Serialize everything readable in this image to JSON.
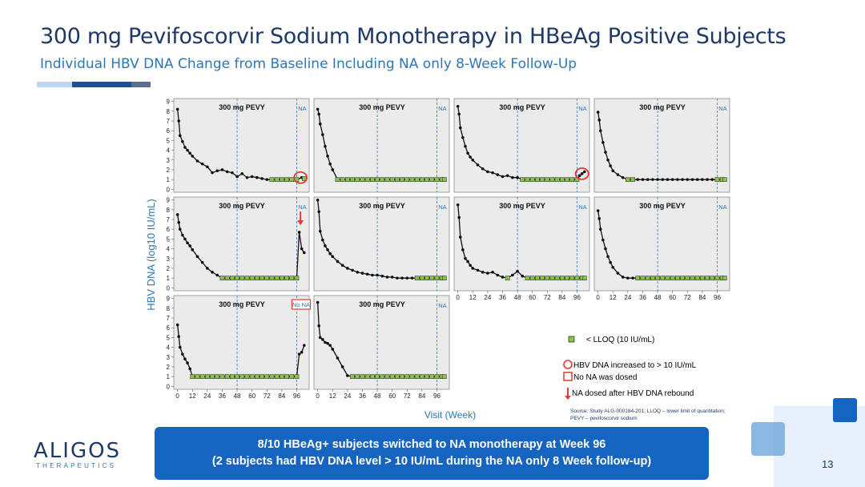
{
  "title": "300 mg Pevifoscorvir Sodium Monotherapy in HBeAg Positive Subjects",
  "subtitle": "Individual HBV DNA Change from Baseline Including NA only 8-Week Follow-Up",
  "logo": {
    "name": "ALIGOS",
    "tagline": "THERAPEUTICS"
  },
  "callout": {
    "line1": "8/10 HBeAg+ subjects switched to NA monotherapy at Week 96",
    "line2": "(2 subjects had HBV DNA level > 10 IU/mL during the NA only 8 Week follow-up)"
  },
  "page_number": "13",
  "colors": {
    "title": "#1f3864",
    "accent": "#2e75b6",
    "callout": "#1565c0",
    "lloq": "#8bc34a",
    "marker": "#e53935"
  },
  "chart_data": {
    "type": "line",
    "ylabel": "HBV DNA (log10 IU/mL)",
    "xlabel": "Visit (Week)",
    "x_ticks": [
      0,
      12,
      24,
      36,
      48,
      60,
      72,
      84,
      96
    ],
    "x_tick_labels": [
      "0",
      "12",
      "24",
      "36",
      "48",
      "60",
      "72",
      "84",
      "96"
    ],
    "y_ticks": [
      0,
      1,
      2,
      3,
      4,
      5,
      6,
      7,
      8,
      9
    ],
    "y_tick_labels": [
      "0",
      "1",
      "2",
      "3",
      "4",
      "5",
      "6",
      "7",
      "8",
      "9"
    ],
    "xlim": [
      -3,
      106
    ],
    "ylim": [
      -0.3,
      9.3
    ],
    "vlines": [
      48,
      96
    ],
    "panel_label": "300 mg PEVY",
    "na_label": "NA",
    "no_na_label": "No NA",
    "legend": {
      "lloq": "< LLOQ (10 IU/mL)",
      "increase": "HBV DNA increased to > 10 IU/mL",
      "no_na": "No NA was dosed",
      "arrow": "NA dosed after HBV DNA rebound"
    },
    "source": "Source: Study ALG-000184-201; LLOQ – lower limit of quantitation;",
    "source2": "PEVY – pevifoscorvir sodium",
    "panels": [
      {
        "label_type": "na",
        "circle": [
          99,
          1.2
        ],
        "x": [
          0,
          1,
          2,
          4,
          6,
          8,
          10,
          12,
          16,
          20,
          24,
          28,
          32,
          36,
          40,
          44,
          48,
          52,
          56,
          60,
          64,
          68,
          72,
          76,
          80,
          84,
          88,
          92,
          96,
          100,
          102
        ],
        "y": [
          8.2,
          7.0,
          5.5,
          4.9,
          4.3,
          4.0,
          3.7,
          3.4,
          2.9,
          2.6,
          2.3,
          1.7,
          1.9,
          2.0,
          1.8,
          1.7,
          1.3,
          1.6,
          1.2,
          1.3,
          1.2,
          1.1,
          1.0,
          1.0,
          1.0,
          1.0,
          1.0,
          1.0,
          1.0,
          1.2,
          1.1
        ],
        "lloq": [
          false,
          false,
          false,
          false,
          false,
          false,
          false,
          false,
          false,
          false,
          false,
          false,
          false,
          false,
          false,
          false,
          false,
          false,
          false,
          false,
          false,
          false,
          false,
          true,
          true,
          true,
          true,
          true,
          true,
          false,
          true
        ]
      },
      {
        "label_type": "na",
        "x": [
          0,
          1,
          2,
          4,
          6,
          8,
          10,
          12,
          16,
          20,
          24,
          28,
          32,
          36,
          40,
          44,
          48,
          52,
          56,
          60,
          64,
          68,
          72,
          76,
          80,
          84,
          88,
          92,
          96,
          100,
          102
        ],
        "y": [
          8.2,
          7.7,
          6.7,
          5.6,
          4.4,
          3.4,
          2.6,
          2.0,
          1.0,
          1.0,
          1.0,
          1.0,
          1.0,
          1.0,
          1.0,
          1.0,
          1.0,
          1.0,
          1.0,
          1.0,
          1.0,
          1.0,
          1.0,
          1.0,
          1.0,
          1.0,
          1.0,
          1.0,
          1.0,
          1.0,
          1.0
        ],
        "lloq": [
          false,
          false,
          false,
          false,
          false,
          false,
          false,
          false,
          true,
          true,
          true,
          true,
          true,
          true,
          true,
          true,
          true,
          true,
          true,
          true,
          true,
          true,
          true,
          true,
          true,
          true,
          true,
          true,
          true,
          true,
          true
        ]
      },
      {
        "label_type": "na",
        "circle": [
          100,
          1.6
        ],
        "x": [
          0,
          1,
          2,
          4,
          6,
          8,
          10,
          12,
          16,
          20,
          24,
          28,
          32,
          36,
          40,
          44,
          48,
          52,
          56,
          60,
          64,
          68,
          72,
          76,
          80,
          84,
          88,
          92,
          96,
          98,
          100,
          102
        ],
        "y": [
          8.5,
          7.7,
          6.3,
          5.3,
          4.4,
          3.7,
          3.3,
          3.0,
          2.5,
          2.1,
          1.8,
          1.7,
          1.5,
          1.3,
          1.4,
          1.2,
          1.2,
          1.0,
          1.0,
          1.0,
          1.0,
          1.0,
          1.0,
          1.0,
          1.0,
          1.0,
          1.0,
          1.0,
          1.0,
          1.4,
          1.6,
          1.8
        ],
        "lloq": [
          false,
          false,
          false,
          false,
          false,
          false,
          false,
          false,
          false,
          false,
          false,
          false,
          false,
          false,
          false,
          false,
          false,
          true,
          true,
          true,
          true,
          true,
          true,
          true,
          true,
          true,
          true,
          true,
          true,
          false,
          false,
          false
        ]
      },
      {
        "label_type": "na",
        "x": [
          0,
          1,
          2,
          4,
          6,
          8,
          10,
          12,
          16,
          20,
          24,
          28,
          32,
          36,
          40,
          44,
          48,
          52,
          56,
          60,
          64,
          68,
          72,
          76,
          80,
          84,
          88,
          92,
          96,
          100,
          102
        ],
        "y": [
          7.9,
          7.1,
          6.0,
          4.8,
          3.8,
          3.0,
          2.4,
          1.9,
          1.5,
          1.2,
          1.0,
          1.0,
          1.0,
          1.0,
          1.0,
          1.0,
          1.0,
          1.0,
          1.0,
          1.0,
          1.0,
          1.0,
          1.0,
          1.0,
          1.0,
          1.0,
          1.0,
          1.0,
          1.0,
          1.0,
          1.0
        ],
        "lloq": [
          false,
          false,
          false,
          false,
          false,
          false,
          false,
          false,
          false,
          false,
          true,
          true,
          false,
          false,
          false,
          false,
          false,
          false,
          false,
          false,
          false,
          false,
          false,
          false,
          false,
          false,
          false,
          false,
          true,
          true,
          true
        ]
      },
      {
        "label_type": "na",
        "arrow": [
          99,
          6.5
        ],
        "x": [
          0,
          1,
          2,
          4,
          6,
          8,
          10,
          12,
          16,
          20,
          24,
          28,
          32,
          36,
          40,
          44,
          48,
          52,
          56,
          60,
          64,
          68,
          72,
          76,
          80,
          84,
          88,
          92,
          96,
          98,
          100,
          102
        ],
        "y": [
          7.5,
          6.7,
          6.0,
          5.4,
          5.0,
          4.6,
          4.3,
          3.9,
          3.2,
          2.6,
          2.0,
          1.6,
          1.3,
          1.0,
          1.0,
          1.0,
          1.0,
          1.0,
          1.0,
          1.0,
          1.0,
          1.0,
          1.0,
          1.0,
          1.0,
          1.0,
          1.0,
          1.0,
          1.0,
          5.7,
          4.0,
          3.6
        ],
        "lloq": [
          false,
          false,
          false,
          false,
          false,
          false,
          false,
          false,
          false,
          false,
          false,
          false,
          false,
          true,
          true,
          true,
          true,
          true,
          true,
          true,
          true,
          true,
          true,
          true,
          true,
          true,
          true,
          true,
          true,
          false,
          false,
          false
        ]
      },
      {
        "label_type": "na",
        "x": [
          0,
          1,
          2,
          4,
          6,
          8,
          10,
          12,
          16,
          20,
          24,
          28,
          32,
          36,
          40,
          44,
          48,
          52,
          56,
          60,
          64,
          68,
          72,
          76,
          80,
          84,
          88,
          92,
          96,
          100,
          102
        ],
        "y": [
          9.0,
          7.8,
          5.8,
          4.9,
          4.3,
          3.9,
          3.5,
          3.2,
          2.7,
          2.3,
          2.0,
          1.8,
          1.6,
          1.5,
          1.4,
          1.3,
          1.3,
          1.2,
          1.1,
          1.1,
          1.0,
          1.0,
          1.0,
          1.0,
          1.0,
          1.0,
          1.0,
          1.0,
          1.0,
          1.0,
          1.0
        ],
        "lloq": [
          false,
          false,
          false,
          false,
          false,
          false,
          false,
          false,
          false,
          false,
          false,
          false,
          false,
          false,
          false,
          false,
          false,
          false,
          false,
          false,
          false,
          false,
          false,
          false,
          true,
          true,
          true,
          true,
          true,
          true,
          true
        ]
      },
      {
        "label_type": "na",
        "x": [
          0,
          1,
          2,
          4,
          6,
          8,
          10,
          12,
          16,
          20,
          24,
          28,
          32,
          36,
          40,
          44,
          48,
          52,
          56,
          60,
          64,
          68,
          72,
          76,
          80,
          84,
          88,
          92,
          96,
          100,
          102
        ],
        "y": [
          8.5,
          7.2,
          5.2,
          3.9,
          3.0,
          2.7,
          2.3,
          2.0,
          1.8,
          1.6,
          1.5,
          1.6,
          1.3,
          1.1,
          1.0,
          1.3,
          1.7,
          1.2,
          1.0,
          1.0,
          1.0,
          1.0,
          1.0,
          1.0,
          1.0,
          1.0,
          1.0,
          1.0,
          1.0,
          1.0,
          1.0
        ],
        "lloq": [
          false,
          false,
          false,
          false,
          false,
          false,
          false,
          false,
          false,
          false,
          false,
          false,
          false,
          false,
          true,
          false,
          false,
          false,
          true,
          true,
          true,
          true,
          true,
          true,
          true,
          true,
          true,
          true,
          true,
          true,
          true
        ]
      },
      {
        "label_type": "na",
        "x": [
          0,
          1,
          2,
          4,
          6,
          8,
          10,
          12,
          16,
          20,
          24,
          28,
          32,
          36,
          40,
          44,
          48,
          52,
          56,
          60,
          64,
          68,
          72,
          76,
          80,
          84,
          88,
          92,
          96,
          100,
          102
        ],
        "y": [
          7.9,
          7.1,
          6.0,
          4.9,
          4.0,
          3.2,
          2.6,
          2.1,
          1.5,
          1.1,
          1.0,
          1.0,
          1.0,
          1.0,
          1.0,
          1.0,
          1.0,
          1.0,
          1.0,
          1.0,
          1.0,
          1.0,
          1.0,
          1.0,
          1.0,
          1.0,
          1.0,
          1.0,
          1.0,
          1.0,
          1.0
        ],
        "lloq": [
          false,
          false,
          false,
          false,
          false,
          false,
          false,
          false,
          false,
          false,
          false,
          false,
          true,
          true,
          true,
          true,
          true,
          true,
          true,
          true,
          true,
          true,
          true,
          true,
          true,
          true,
          true,
          true,
          true,
          true,
          true
        ]
      },
      {
        "label_type": "nona",
        "x": [
          0,
          1,
          2,
          4,
          6,
          8,
          10,
          12,
          16,
          20,
          24,
          28,
          32,
          36,
          40,
          44,
          48,
          52,
          56,
          60,
          64,
          68,
          72,
          76,
          80,
          84,
          88,
          92,
          96,
          98,
          100,
          102
        ],
        "y": [
          6.3,
          5.1,
          4.0,
          3.3,
          2.8,
          2.4,
          1.8,
          1.0,
          1.0,
          1.0,
          1.0,
          1.0,
          1.0,
          1.0,
          1.0,
          1.0,
          1.0,
          1.0,
          1.0,
          1.0,
          1.0,
          1.0,
          1.0,
          1.0,
          1.0,
          1.0,
          1.0,
          1.0,
          1.0,
          3.3,
          3.5,
          4.2
        ],
        "lloq": [
          false,
          false,
          false,
          false,
          false,
          false,
          false,
          true,
          true,
          true,
          true,
          true,
          true,
          true,
          true,
          true,
          true,
          true,
          true,
          true,
          true,
          true,
          true,
          true,
          true,
          true,
          true,
          true,
          true,
          false,
          false,
          false
        ]
      },
      {
        "label_type": "na",
        "x": [
          0,
          1,
          2,
          4,
          6,
          8,
          10,
          12,
          16,
          20,
          24,
          28,
          32,
          36,
          40,
          44,
          48,
          52,
          56,
          60,
          64,
          68,
          72,
          76,
          80,
          84,
          88,
          92,
          96,
          100,
          102
        ],
        "y": [
          8.6,
          6.2,
          5.0,
          4.8,
          4.5,
          4.4,
          4.2,
          3.8,
          2.9,
          2.0,
          1.1,
          1.0,
          1.0,
          1.0,
          1.0,
          1.0,
          1.0,
          1.0,
          1.0,
          1.0,
          1.0,
          1.0,
          1.0,
          1.0,
          1.0,
          1.0,
          1.0,
          1.0,
          1.0,
          1.0,
          1.0
        ],
        "lloq": [
          false,
          false,
          false,
          false,
          false,
          false,
          false,
          false,
          false,
          false,
          false,
          true,
          true,
          true,
          true,
          true,
          true,
          true,
          true,
          true,
          true,
          true,
          true,
          true,
          true,
          true,
          true,
          true,
          true,
          true,
          true
        ]
      }
    ]
  }
}
